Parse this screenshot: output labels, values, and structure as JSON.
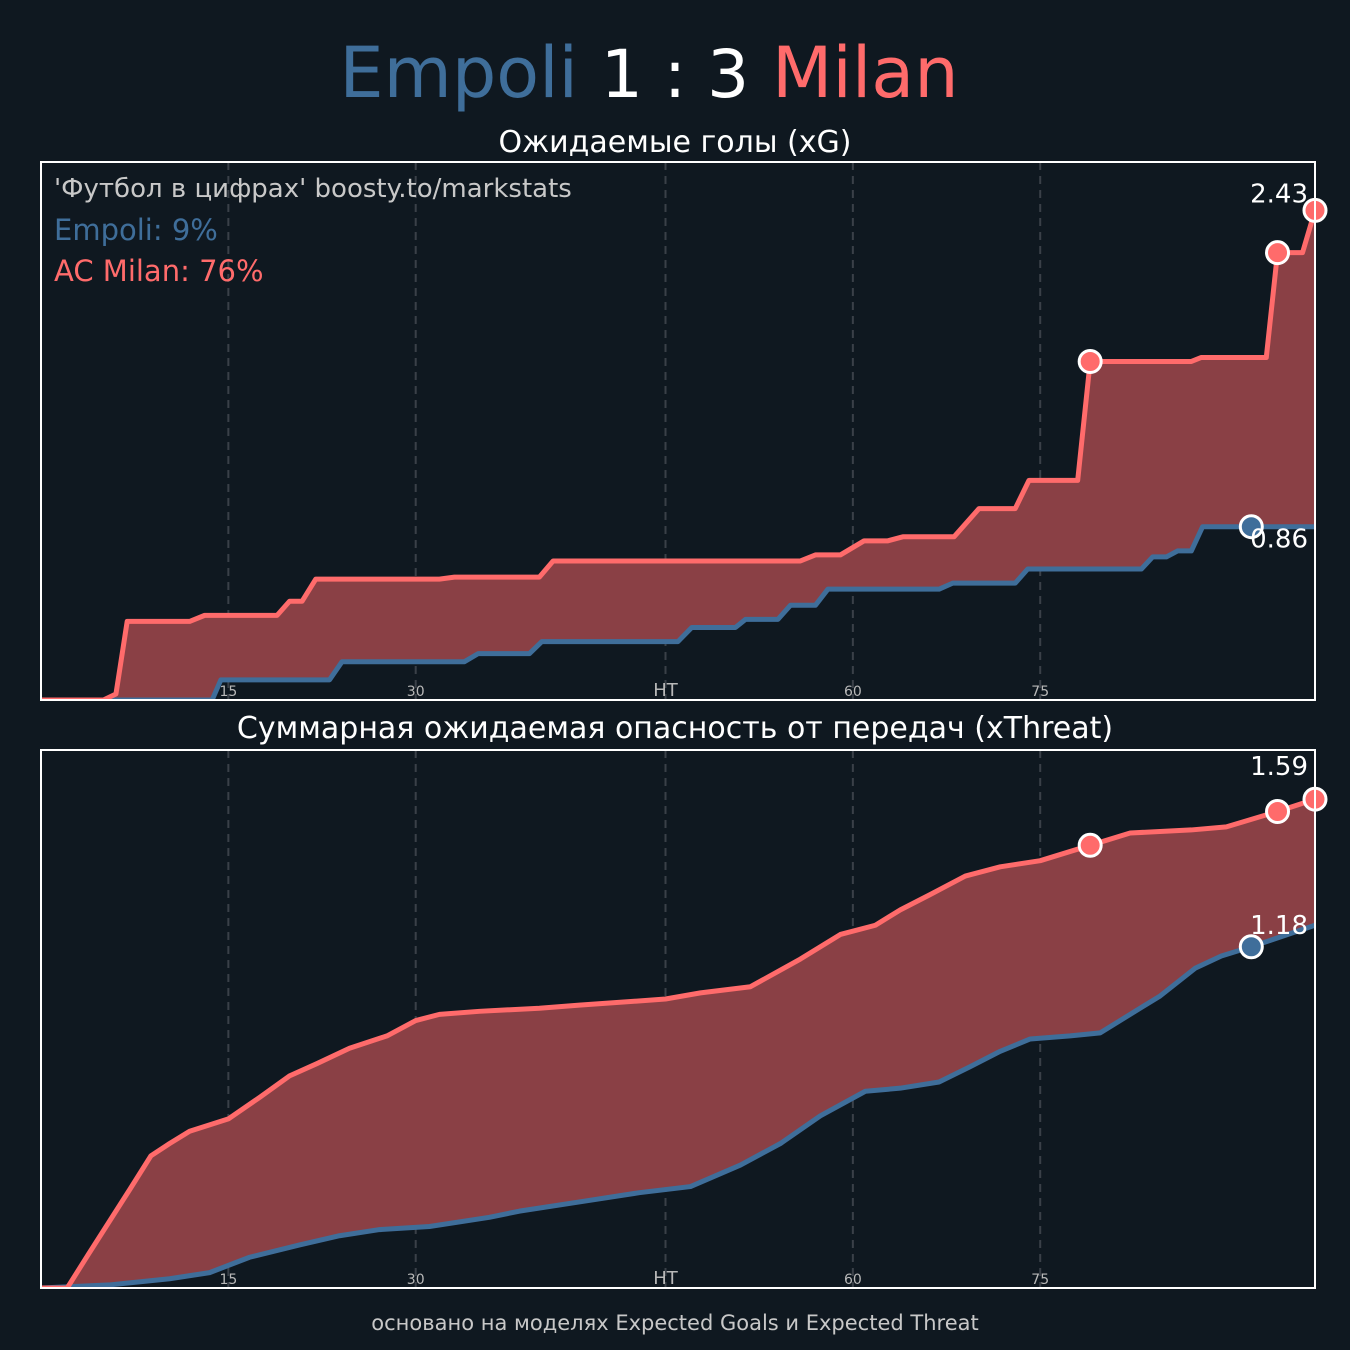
{
  "header": {
    "home": "Empoli",
    "score": "1 : 3",
    "away": "Milan"
  },
  "footer": "основано на моделях Expected Goals и Expected Threat",
  "chart_data": [
    {
      "type": "line",
      "title": "Ожидаемые голы (xG)",
      "source": "'Футбол в цифрах' boosty.to/markstats",
      "xlim": [
        0,
        102
      ],
      "ylim": [
        0,
        2.67
      ],
      "xticks": [
        {
          "value": 15,
          "label": "15"
        },
        30,
        {
          "value": 50,
          "label": "HT"
        },
        {
          "value": 65,
          "label": "60"
        },
        {
          "value": 80,
          "label": "75"
        }
      ],
      "grid": true,
      "fill_between": "#8a4045",
      "series": [
        {
          "name": "Empoli: 9%",
          "color": "#3f6e9a",
          "x": [
            0,
            13.7,
            14.4,
            23.1,
            24.1,
            33.9,
            35.0,
            39.1,
            40.1,
            51.0,
            52.1,
            55.6,
            56.4,
            59.0,
            60.0,
            62.0,
            63.0,
            71.9,
            73.0,
            78.0,
            79.0,
            88.1,
            89.0,
            90.1,
            91.0,
            92.1,
            93.0,
            102
          ],
          "values": [
            0,
            0,
            0.1,
            0.1,
            0.19,
            0.19,
            0.23,
            0.23,
            0.29,
            0.29,
            0.36,
            0.36,
            0.4,
            0.4,
            0.47,
            0.47,
            0.55,
            0.55,
            0.58,
            0.58,
            0.65,
            0.65,
            0.71,
            0.71,
            0.74,
            0.74,
            0.86,
            0.86
          ],
          "goals": {
            "x": [
              96.9
            ],
            "values": [
              0.86
            ]
          }
        },
        {
          "name": "AC Milan: 76%",
          "color": "#ff6b6b",
          "x": [
            0,
            5.0,
            6.0,
            6.9,
            11.9,
            13.1,
            18.9,
            19.9,
            20.9,
            22.0,
            31.9,
            33.1,
            39.9,
            41.0,
            60.8,
            62.0,
            64.0,
            65.9,
            67.8,
            69.0,
            73.1,
            75.1,
            78.0,
            79.1,
            83.0,
            84.0,
            92.1,
            92.9,
            98.1,
            99.0,
            101.0,
            102
          ],
          "values": [
            0,
            0,
            0.03,
            0.39,
            0.39,
            0.42,
            0.42,
            0.49,
            0.49,
            0.6,
            0.6,
            0.61,
            0.61,
            0.69,
            0.69,
            0.72,
            0.72,
            0.79,
            0.79,
            0.81,
            0.81,
            0.95,
            0.95,
            1.09,
            1.09,
            1.68,
            1.68,
            1.7,
            1.7,
            2.22,
            2.22,
            2.43
          ],
          "goals": {
            "x": [
              84.0,
              99.0,
              102
            ],
            "values": [
              1.68,
              2.22,
              2.43
            ]
          }
        }
      ]
    },
    {
      "type": "line",
      "title": "Суммарная ожидаемая опасность от передач (xThreat)",
      "xlim": [
        0,
        102
      ],
      "ylim": [
        0,
        1.75
      ],
      "xticks": [
        {
          "value": 15,
          "label": "15"
        },
        30,
        {
          "value": 50,
          "label": "HT"
        },
        {
          "value": 65,
          "label": "60"
        },
        {
          "value": 80,
          "label": "75"
        }
      ],
      "grid": true,
      "fill_between": "#8a4045",
      "series": [
        {
          "color": "#3f6e9a",
          "x": [
            0,
            5.5,
            10.3,
            13.5,
            16.7,
            20.7,
            23.9,
            27.1,
            31.1,
            35.9,
            38.3,
            43.1,
            47.9,
            52.0,
            56.0,
            59.2,
            62.4,
            66.0,
            68.8,
            71.9,
            74.4,
            76.8,
            79.2,
            82.4,
            84.8,
            87.2,
            89.6,
            92.4,
            94.5,
            96.9,
            102
          ],
          "values": [
            0,
            0.01,
            0.03,
            0.05,
            0.1,
            0.14,
            0.17,
            0.19,
            0.2,
            0.23,
            0.25,
            0.28,
            0.31,
            0.33,
            0.4,
            0.47,
            0.56,
            0.64,
            0.65,
            0.67,
            0.72,
            0.77,
            0.81,
            0.82,
            0.83,
            0.89,
            0.95,
            1.04,
            1.08,
            1.11,
            1.18
          ],
          "goals": {
            "x": [
              96.9
            ],
            "values": [
              1.11
            ]
          }
        },
        {
          "color": "#ff6b6b",
          "x": [
            0,
            2.1,
            3.8,
            7.1,
            8.8,
            10.3,
            11.9,
            15.0,
            17.5,
            19.9,
            22.1,
            24.7,
            27.7,
            30.0,
            31.9,
            35.1,
            39.9,
            43.1,
            50.0,
            52.8,
            56.8,
            60.8,
            64.0,
            66.8,
            68.8,
            71.2,
            74.0,
            76.8,
            80.0,
            84.0,
            87.2,
            92.1,
            94.9,
            99.0,
            102
          ],
          "values": [
            0,
            0,
            0.11,
            0.32,
            0.43,
            0.47,
            0.51,
            0.55,
            0.62,
            0.69,
            0.73,
            0.78,
            0.82,
            0.87,
            0.89,
            0.9,
            0.91,
            0.92,
            0.94,
            0.96,
            0.98,
            1.07,
            1.15,
            1.18,
            1.23,
            1.28,
            1.34,
            1.37,
            1.39,
            1.44,
            1.48,
            1.49,
            1.5,
            1.55,
            1.59
          ],
          "goals": {
            "x": [
              84.0,
              99.0,
              102
            ],
            "values": [
              1.44,
              1.55,
              1.59
            ]
          }
        }
      ]
    }
  ]
}
